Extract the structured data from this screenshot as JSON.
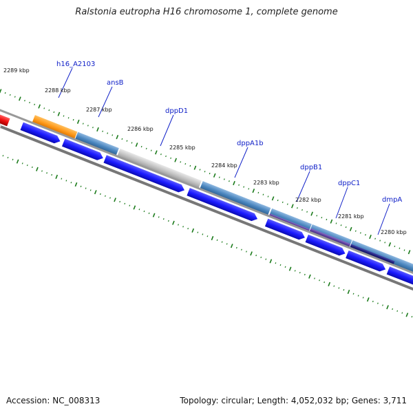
{
  "title": "Ralstonia eutropha H16 chromosome 1, complete genome",
  "footer": {
    "accession": "Accession: NC_008313",
    "summary": "Topology: circular; Length: 4,052,032 bp; Genes: 3,711"
  },
  "kbp_labels": [
    "2289 kbp",
    "2288 kbp",
    "2287 kbp",
    "2286 kbp",
    "2285 kbp",
    "2284 kbp",
    "2283 kbp",
    "2282 kbp",
    "2281 kbp",
    "2280 kbp"
  ],
  "gene_labels": [
    "h16_A2103",
    "ansB",
    "dppD1",
    "dppA1b",
    "dppB1",
    "dppC1",
    "dmpA"
  ],
  "colors": {
    "cds_blue": "#1a1aff",
    "cog_steel": "#4a86bf",
    "cog_orange": "#ff9a1a",
    "cog_gray": "#c4c4c4",
    "cog_purple": "#5a3c9a",
    "cog_navy": "#1c1c78",
    "cog_red": "#f01010",
    "tick_green": "#1a7a1a",
    "backbone": "#777777",
    "label_line": "#1020c8"
  }
}
